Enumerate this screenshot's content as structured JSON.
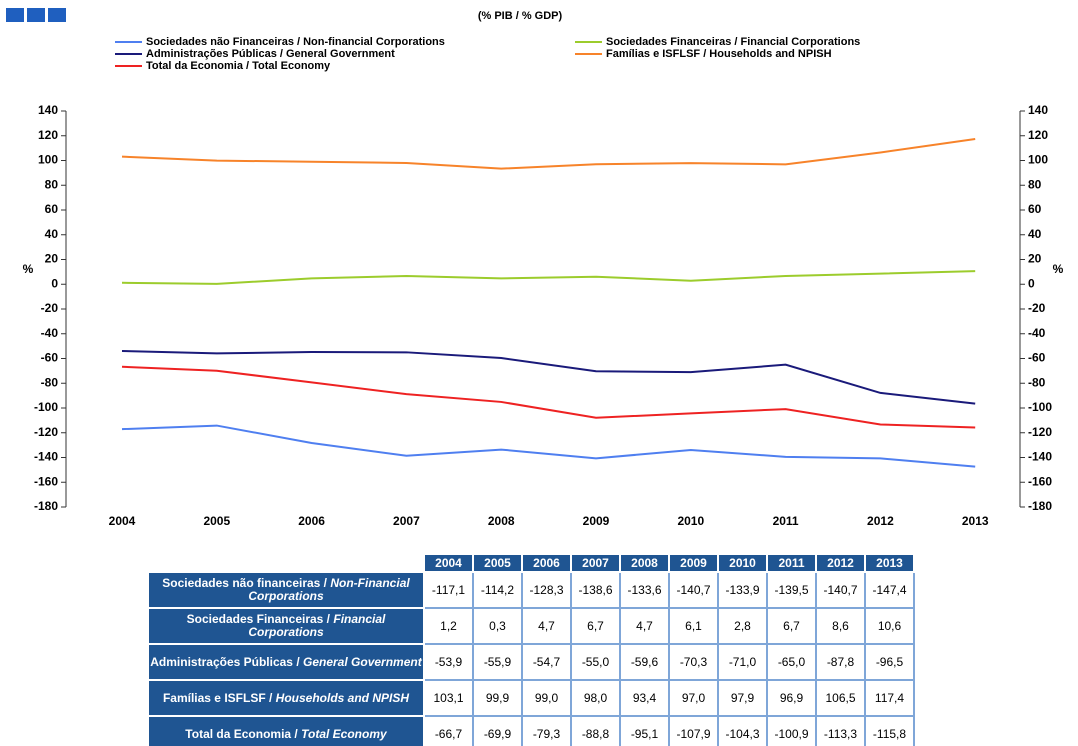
{
  "chart_data": {
    "type": "line",
    "title": "(% PIB / % GDP)",
    "y_label": "%",
    "y2_label": "%",
    "categories": [
      "2004",
      "2005",
      "2006",
      "2007",
      "2008",
      "2009",
      "2010",
      "2011",
      "2012",
      "2013"
    ],
    "series": [
      {
        "name": "Sociedades não Financeiras / Non-financial Corporations",
        "color": "#4f7ff0",
        "values": [
          -117.1,
          -114.2,
          -128.3,
          -138.6,
          -133.6,
          -140.7,
          -133.9,
          -139.5,
          -140.7,
          -147.4
        ],
        "value_labels": [
          "-117,1",
          "-114,2",
          "-128,3",
          "-138,6",
          "-133,6",
          "-140,7",
          "-133,9",
          "-139,5",
          "-140,7",
          "-147,4"
        ]
      },
      {
        "name": "Sociedades Financeiras / Financial Corporations",
        "color": "#9ccc2c",
        "values": [
          1.2,
          0.3,
          4.7,
          6.7,
          4.7,
          6.1,
          2.8,
          6.7,
          8.6,
          10.6
        ],
        "value_labels": [
          "1,2",
          "0,3",
          "4,7",
          "6,7",
          "4,7",
          "6,1",
          "2,8",
          "6,7",
          "8,6",
          "10,6"
        ]
      },
      {
        "name": "Administrações Públicas / General Government",
        "color": "#1a1a7a",
        "values": [
          -53.9,
          -55.9,
          -54.7,
          -55.0,
          -59.6,
          -70.3,
          -71.0,
          -65.0,
          -87.8,
          -96.5
        ],
        "value_labels": [
          "-53,9",
          "-55,9",
          "-54,7",
          "-55,0",
          "-59,6",
          "-70,3",
          "-71,0",
          "-65,0",
          "-87,8",
          "-96,5"
        ]
      },
      {
        "name": "Famílias e ISFLSF / Households and NPISH",
        "color": "#f7832a",
        "values": [
          103.1,
          99.9,
          99.0,
          98.0,
          93.4,
          97.0,
          97.9,
          96.9,
          106.5,
          117.4
        ],
        "value_labels": [
          "103,1",
          "99,9",
          "99,0",
          "98,0",
          "93,4",
          "97,0",
          "97,9",
          "96,9",
          "106,5",
          "117,4"
        ]
      },
      {
        "name": "Total da Economia / Total Economy",
        "color": "#ee2222",
        "values": [
          -66.7,
          -69.9,
          -79.3,
          -88.8,
          -95.1,
          -107.9,
          -104.3,
          -100.9,
          -113.3,
          -115.8
        ],
        "value_labels": [
          "-66,7",
          "-69,9",
          "-79,3",
          "-88,8",
          "-95,1",
          "-107,9",
          "-104,3",
          "-100,9",
          "-113,3",
          "-115,8"
        ]
      }
    ],
    "ylim": [
      -180,
      140
    ],
    "yticks": [
      -180,
      -160,
      -140,
      -120,
      -100,
      -80,
      -60,
      -40,
      -20,
      0,
      20,
      40,
      60,
      80,
      100,
      120,
      140
    ],
    "y2lim": [
      -180,
      140
    ],
    "y2ticks": [
      -180,
      -160,
      -140,
      -120,
      -100,
      -80,
      -60,
      -40,
      -20,
      0,
      20,
      40,
      60,
      80,
      100,
      120,
      140
    ]
  },
  "table": {
    "rows": [
      {
        "pt": "Sociedades não financeiras /",
        "en": "Non-Financial Corporations"
      },
      {
        "pt": "Sociedades Financeiras /",
        "en": "Financial Corporations"
      },
      {
        "pt": "Administrações Públicas /",
        "en": "General Government"
      },
      {
        "pt": "Famílias e ISFLSF /",
        "en": "Households and NPISH"
      },
      {
        "pt": "Total da Economia /",
        "en": "Total Economy"
      }
    ]
  }
}
